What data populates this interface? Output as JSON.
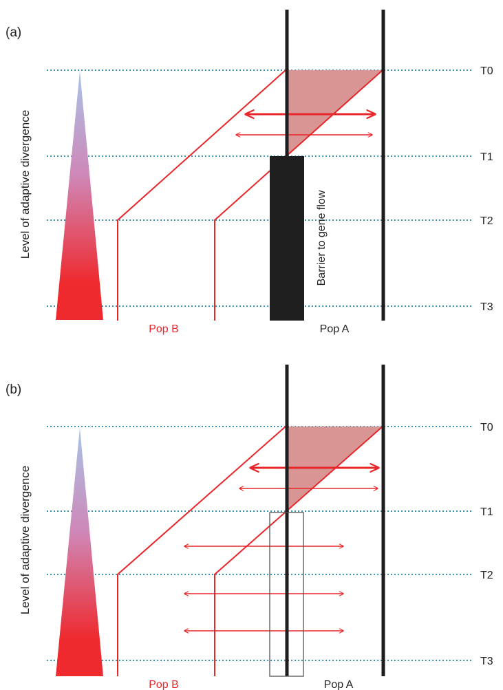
{
  "colors": {
    "dotted_line": "#3b93b4",
    "lineage_red": "#e8262a",
    "lineage_black": "#1e1e1e",
    "divergence_fill": "#d99594",
    "gradient_top": "#a9c4e8",
    "gradient_mid": "#cf87b7",
    "gradient_bottom": "#ee2a2e",
    "pop_b_text": "#e8262a",
    "pop_a_text": "#222222"
  },
  "panels": [
    {
      "label": "(a)",
      "y_axis_label": "Level of adaptive divergence",
      "time_labels": [
        "T0",
        "T1",
        "T2",
        "T3"
      ],
      "pop_b_label": "Pop B",
      "pop_a_label": "Pop A",
      "barrier_label": "Barrier to gene flow",
      "barrier_style": "solid"
    },
    {
      "label": "(b)",
      "y_axis_label": "Level of adaptive divergence",
      "time_labels": [
        "T0",
        "T1",
        "T2",
        "T3"
      ],
      "pop_b_label": "Pop B",
      "pop_a_label": "Pop A",
      "barrier_label": "",
      "barrier_style": "outline"
    }
  ]
}
